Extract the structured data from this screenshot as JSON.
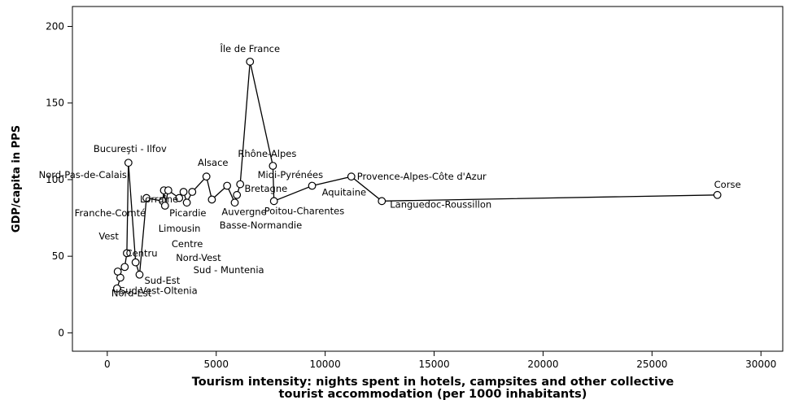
{
  "chart_data": {
    "type": "line",
    "xlabel_line1": "Tourism intensity: nights spent in hotels, campsites and other collective",
    "xlabel_line2": "tourist accommodation (per 1000 inhabitants)",
    "ylabel": "GDP/capita in PPS",
    "xlim": [
      -1600,
      31000
    ],
    "ylim": [
      -12,
      213
    ],
    "x_ticks": [
      0,
      5000,
      10000,
      15000,
      20000,
      25000,
      30000
    ],
    "x_tick_labels": [
      "0",
      "5000",
      "10000",
      "15000",
      "20000",
      "25000",
      "30000"
    ],
    "y_ticks": [
      0,
      50,
      100,
      150,
      200
    ],
    "y_tick_labels": [
      "0",
      "50",
      "100",
      "150",
      "200"
    ],
    "points": [
      {
        "x": 450,
        "y": 29,
        "label": "Sud-Vest-Oltenia"
      },
      {
        "x": 600,
        "y": 36,
        "label": "Nord-Est"
      },
      {
        "x": 480,
        "y": 40,
        "label": ""
      },
      {
        "x": 800,
        "y": 43,
        "label": ""
      },
      {
        "x": 900,
        "y": 52,
        "label": "Vest"
      },
      {
        "x": 970,
        "y": 111,
        "label": "Bucureşti - Ilfov"
      },
      {
        "x": 1300,
        "y": 46,
        "label": "Centru"
      },
      {
        "x": 1480,
        "y": 38,
        "label": "Sud-Est"
      },
      {
        "x": 1800,
        "y": 88,
        "label": ""
      },
      {
        "x": 2550,
        "y": 86,
        "label": ""
      },
      {
        "x": 2600,
        "y": 93,
        "label": ""
      },
      {
        "x": 2650,
        "y": 83,
        "label": ""
      },
      {
        "x": 2800,
        "y": 93,
        "label": ""
      },
      {
        "x": 3300,
        "y": 88,
        "label": ""
      },
      {
        "x": 3500,
        "y": 92,
        "label": ""
      },
      {
        "x": 3650,
        "y": 85,
        "label": ""
      },
      {
        "x": 3900,
        "y": 92,
        "label": ""
      },
      {
        "x": 4550,
        "y": 102,
        "label": ""
      },
      {
        "x": 4800,
        "y": 87,
        "label": ""
      },
      {
        "x": 5500,
        "y": 96,
        "label": ""
      },
      {
        "x": 5850,
        "y": 85,
        "label": ""
      },
      {
        "x": 5950,
        "y": 90,
        "label": ""
      },
      {
        "x": 6100,
        "y": 97,
        "label": ""
      },
      {
        "x": 6550,
        "y": 177,
        "label": "Île de France"
      },
      {
        "x": 7600,
        "y": 109,
        "label": "Rhône-Alpes"
      },
      {
        "x": 7650,
        "y": 86,
        "label": "Poitou-Charentes"
      },
      {
        "x": 9400,
        "y": 96,
        "label": "Aquitaine"
      },
      {
        "x": 11200,
        "y": 102,
        "label": "Provence-Alpes-Côte d'Azur"
      },
      {
        "x": 12600,
        "y": 86,
        "label": "Languedoc-Roussillon"
      },
      {
        "x": 28000,
        "y": 90,
        "label": "Corse"
      }
    ],
    "annotations": [
      {
        "text": "Nord-Pas-de-Calais",
        "x": 900,
        "y": 101,
        "anchor": "end"
      },
      {
        "text": "Lorraine",
        "x": 1500,
        "y": 85,
        "anchor": "start"
      },
      {
        "text": "Franche-Comté",
        "x": -1500,
        "y": 76,
        "anchor": "start"
      },
      {
        "text": "Picardie",
        "x": 2850,
        "y": 76,
        "anchor": "start"
      },
      {
        "text": "Limousin",
        "x": 2350,
        "y": 66,
        "anchor": "start"
      },
      {
        "text": "Centre",
        "x": 2950,
        "y": 56,
        "anchor": "start"
      },
      {
        "text": "Alsace",
        "x": 4150,
        "y": 109,
        "anchor": "start"
      },
      {
        "text": "Bretagne",
        "x": 6300,
        "y": 92,
        "anchor": "start"
      },
      {
        "text": "Auvergne",
        "x": 5250,
        "y": 77,
        "anchor": "start"
      },
      {
        "text": "Basse-Normandie",
        "x": 5150,
        "y": 68,
        "anchor": "start"
      },
      {
        "text": "Midi-Pyrénées",
        "x": 6900,
        "y": 101,
        "anchor": "start"
      },
      {
        "text": "Nord-Vest",
        "x": 3150,
        "y": 47,
        "anchor": "start"
      },
      {
        "text": "Sud - Muntenia",
        "x": 3950,
        "y": 39,
        "anchor": "start"
      }
    ]
  }
}
